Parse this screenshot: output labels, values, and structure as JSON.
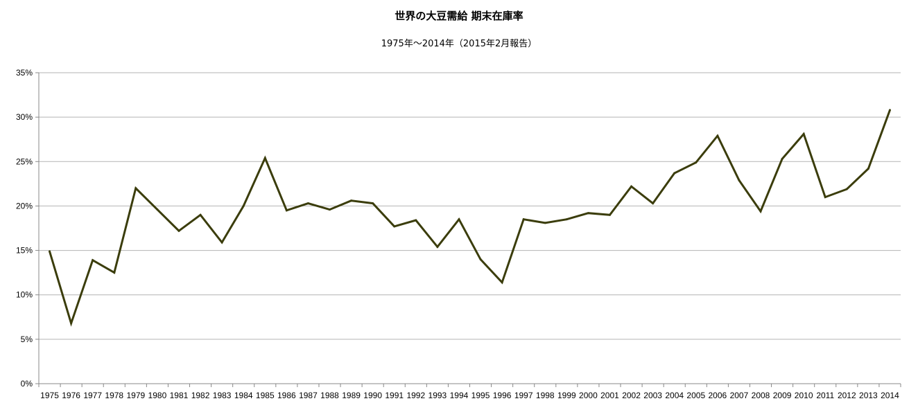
{
  "chart_data": {
    "type": "line",
    "title": "世界の大豆需給 期末在庫率",
    "subtitle": "1975年～2014年（2015年2月報告）",
    "xlabel": "",
    "ylabel": "",
    "ylim": [
      0,
      35
    ],
    "y_ticks": [
      "0%",
      "5%",
      "10%",
      "15%",
      "20%",
      "25%",
      "30%",
      "35%"
    ],
    "y_tick_values": [
      0,
      5,
      10,
      15,
      20,
      25,
      30,
      35
    ],
    "grid": true,
    "legend": "none",
    "line_color": "#3b3d0c",
    "grid_color": "#b3b3b3",
    "categories": [
      "1975",
      "1976",
      "1977",
      "1978",
      "1979",
      "1980",
      "1981",
      "1982",
      "1983",
      "1984",
      "1985",
      "1986",
      "1987",
      "1988",
      "1989",
      "1990",
      "1991",
      "1992",
      "1993",
      "1994",
      "1995",
      "1996",
      "1997",
      "1998",
      "1999",
      "2000",
      "2001",
      "2002",
      "2003",
      "2004",
      "2005",
      "2006",
      "2007",
      "2008",
      "2009",
      "2010",
      "2011",
      "2012",
      "2013",
      "2014"
    ],
    "values": [
      14.9,
      6.8,
      13.9,
      12.5,
      22.0,
      19.6,
      17.2,
      19.0,
      15.9,
      20.0,
      25.4,
      19.5,
      20.3,
      19.6,
      20.6,
      20.3,
      17.7,
      18.4,
      15.4,
      18.5,
      14.0,
      11.4,
      18.5,
      18.1,
      18.5,
      19.2,
      19.0,
      22.2,
      20.3,
      23.7,
      24.9,
      27.9,
      22.9,
      19.4,
      25.3,
      28.1,
      21.0,
      21.9,
      24.2,
      30.8
    ]
  }
}
